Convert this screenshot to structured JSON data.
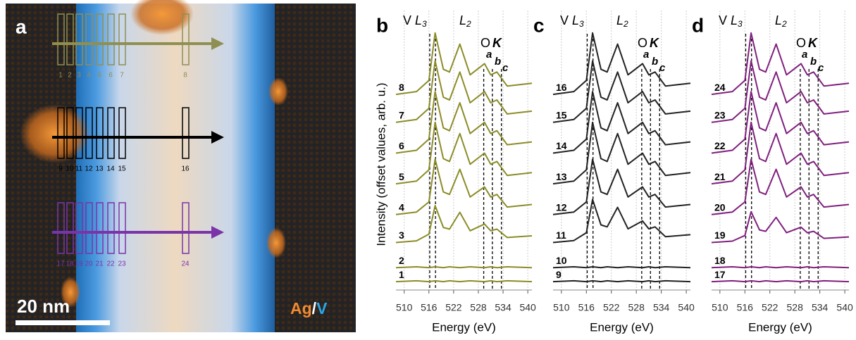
{
  "panel_a": {
    "label": "a",
    "boxes_top": [
      "1",
      "2",
      "3",
      "4",
      "5",
      "6",
      "7",
      "8"
    ],
    "boxes_mid": [
      "9",
      "10",
      "11",
      "12",
      "13",
      "14",
      "15",
      "16"
    ],
    "boxes_bot": [
      "17",
      "18",
      "19",
      "20",
      "21",
      "22",
      "23",
      "24"
    ],
    "scale_bar": "20 nm",
    "legend": [
      "Ag",
      "/",
      "V"
    ]
  },
  "chart_data": [
    {
      "type": "line",
      "panel_label": "b",
      "x_label": "Energy (eV)",
      "y_label": "Intensity (offset values, arb. u.)",
      "xlim": [
        508,
        541
      ],
      "xticks": [
        510,
        516,
        522,
        528,
        534,
        540
      ],
      "ylim": [
        0,
        100
      ],
      "grid": true,
      "edge_labels": {
        "v": "V",
        "l3": {
          "main": "L",
          "sub": "3"
        },
        "l2": {
          "main": "L",
          "sub": "2"
        },
        "o": "O",
        "k": "K",
        "a": "a",
        "b": "b",
        "c": "c"
      },
      "markers": [
        516.2,
        517.6,
        529.3,
        531.4,
        533.6
      ],
      "x": [
        508,
        513,
        516,
        517.5,
        519.5,
        521,
        523.5,
        526,
        529.5,
        531,
        532.5,
        535,
        541
      ],
      "series": [
        {
          "name": "1",
          "color": "#8c8c28",
          "values": [
            3,
            3.3,
            3,
            3.3,
            3,
            3.3,
            3,
            3.3,
            3,
            3.3,
            3,
            3.3,
            3
          ]
        },
        {
          "name": "2",
          "color": "#8c8c28",
          "values": [
            8,
            8.3,
            8,
            8.3,
            8,
            8.3,
            8,
            8.3,
            8,
            8.3,
            8,
            8.3,
            8
          ]
        },
        {
          "name": "3",
          "color": "#8c8c28",
          "values": [
            17,
            17.6,
            20,
            30.2,
            22.4,
            21.8,
            27.8,
            21.2,
            23.6,
            21.2,
            21.8,
            18.8,
            19.4
          ]
        },
        {
          "name": "4",
          "color": "#8c8c28",
          "values": [
            27,
            27.9,
            31.5,
            46.8,
            35.1,
            34.2,
            43.2,
            33.3,
            36.9,
            33.3,
            34.2,
            29.7,
            30.6
          ]
        },
        {
          "name": "5",
          "color": "#8c8c28",
          "values": [
            38,
            39,
            43,
            60,
            47,
            46,
            56,
            45,
            49,
            45,
            46,
            41,
            42
          ]
        },
        {
          "name": "6",
          "color": "#8c8c28",
          "values": [
            49,
            50,
            54,
            71,
            58,
            57,
            67,
            56,
            60,
            56,
            57,
            52,
            53
          ]
        },
        {
          "name": "7",
          "color": "#8c8c28",
          "values": [
            60,
            61,
            65,
            82,
            69,
            68,
            78,
            67,
            71,
            67,
            68,
            63,
            64
          ]
        },
        {
          "name": "8",
          "color": "#8c8c28",
          "values": [
            70,
            71,
            75,
            92,
            79,
            78,
            88,
            77,
            81,
            77,
            78,
            73,
            74
          ]
        }
      ]
    },
    {
      "type": "line",
      "panel_label": "c",
      "x_label": "Energy (eV)",
      "xlim": [
        508,
        541
      ],
      "xticks": [
        510,
        516,
        522,
        528,
        534,
        540
      ],
      "ylim": [
        0,
        100
      ],
      "grid": true,
      "edge_labels": {
        "v": "V",
        "l3": {
          "main": "L",
          "sub": "3"
        },
        "l2": {
          "main": "L",
          "sub": "2"
        },
        "o": "O",
        "k": "K",
        "a": "a",
        "b": "b",
        "c": "c"
      },
      "markers": [
        516.2,
        517.6,
        529.3,
        531.4,
        533.6
      ],
      "x": [
        508,
        513,
        516,
        517.5,
        519.5,
        521,
        523.5,
        526,
        529.5,
        531,
        532.5,
        535,
        541
      ],
      "series": [
        {
          "name": "9",
          "color": "#222222",
          "values": [
            3,
            3.3,
            3,
            3.3,
            3,
            3.3,
            3,
            3.3,
            3,
            3.3,
            3,
            3.3,
            3
          ]
        },
        {
          "name": "10",
          "color": "#222222",
          "values": [
            8,
            8.3,
            8,
            8.3,
            8,
            8.3,
            8,
            8.3,
            8,
            8.3,
            8,
            8.3,
            8
          ]
        },
        {
          "name": "11",
          "color": "#222222",
          "values": [
            17,
            17.7,
            20.5,
            32.4,
            23.3,
            22.6,
            29.6,
            21.9,
            24.7,
            21.9,
            22.6,
            19.1,
            19.8
          ]
        },
        {
          "name": "12",
          "color": "#222222",
          "values": [
            27,
            27.9,
            31.5,
            46.8,
            35.1,
            34.2,
            43.2,
            33.3,
            36.9,
            33.3,
            34.2,
            29.7,
            30.6
          ]
        },
        {
          "name": "13",
          "color": "#222222",
          "values": [
            38,
            39,
            43,
            60,
            47,
            46,
            56,
            45,
            49,
            45,
            46,
            41,
            42
          ]
        },
        {
          "name": "14",
          "color": "#222222",
          "values": [
            49,
            50,
            54,
            71,
            58,
            57,
            67,
            56,
            60,
            56,
            57,
            52,
            53
          ]
        },
        {
          "name": "15",
          "color": "#222222",
          "values": [
            60,
            61,
            65,
            82,
            69,
            68,
            78,
            67,
            71,
            67,
            68,
            63,
            64
          ]
        },
        {
          "name": "16",
          "color": "#222222",
          "values": [
            70,
            71,
            75,
            92,
            79,
            78,
            88,
            77,
            81,
            77,
            78,
            73,
            74
          ]
        }
      ]
    },
    {
      "type": "line",
      "panel_label": "d",
      "x_label": "Energy (eV)",
      "xlim": [
        508,
        541
      ],
      "xticks": [
        510,
        516,
        522,
        528,
        534,
        540
      ],
      "ylim": [
        0,
        100
      ],
      "grid": true,
      "edge_labels": {
        "v": "V",
        "l3": {
          "main": "L",
          "sub": "3"
        },
        "l2": {
          "main": "L",
          "sub": "2"
        },
        "o": "O",
        "k": "K",
        "a": "a",
        "b": "b",
        "c": "c"
      },
      "markers": [
        516.2,
        517.6,
        529.3,
        531.4,
        533.6
      ],
      "x": [
        508,
        513,
        516,
        517.5,
        519.5,
        521,
        523.5,
        526,
        529.5,
        531,
        532.5,
        535,
        541
      ],
      "series": [
        {
          "name": "17",
          "color": "#80207e",
          "values": [
            3,
            3.3,
            3,
            3.3,
            3,
            3.3,
            3,
            3.3,
            3,
            3.3,
            3,
            3.3,
            3
          ]
        },
        {
          "name": "18",
          "color": "#80207e",
          "values": [
            8,
            8.3,
            8,
            8.3,
            8,
            8.3,
            8,
            8.3,
            8,
            8.3,
            8,
            8.3,
            8
          ]
        },
        {
          "name": "19",
          "color": "#80207e",
          "values": [
            17,
            17.5,
            19.5,
            28,
            21.5,
            21,
            26,
            20.5,
            22.5,
            20.5,
            21,
            18.5,
            19
          ]
        },
        {
          "name": "20",
          "color": "#80207e",
          "values": [
            27,
            27.9,
            31.5,
            46.8,
            35.1,
            34.2,
            43.2,
            33.3,
            36.9,
            33.3,
            34.2,
            29.7,
            30.6
          ]
        },
        {
          "name": "21",
          "color": "#80207e",
          "values": [
            38,
            39,
            43,
            60,
            47,
            46,
            56,
            45,
            49,
            45,
            46,
            41,
            42
          ]
        },
        {
          "name": "22",
          "color": "#80207e",
          "values": [
            49,
            50,
            54,
            71,
            58,
            57,
            67,
            56,
            60,
            56,
            57,
            52,
            53
          ]
        },
        {
          "name": "23",
          "color": "#80207e",
          "values": [
            60,
            61,
            65,
            82,
            69,
            68,
            78,
            67,
            71,
            67,
            68,
            63,
            64
          ]
        },
        {
          "name": "24",
          "color": "#80207e",
          "values": [
            70,
            71,
            75,
            92,
            79,
            78,
            88,
            77,
            81,
            77,
            78,
            73,
            74
          ]
        }
      ]
    }
  ]
}
